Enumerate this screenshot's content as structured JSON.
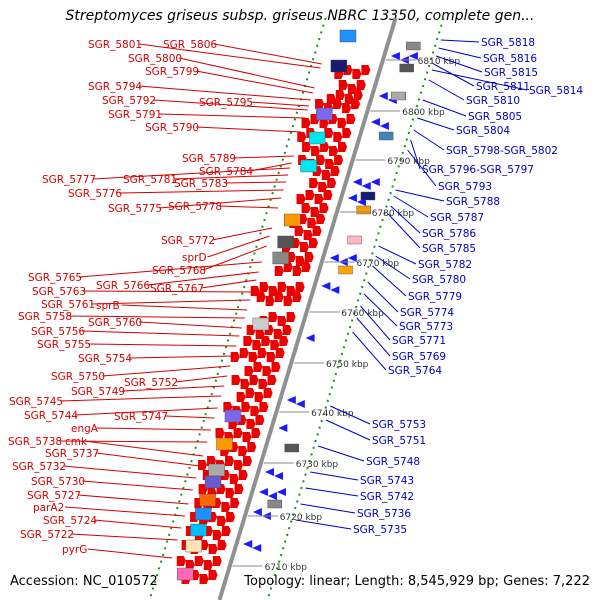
{
  "title": "Streptomyces griseus subsp. griseus NBRC 13350, complete gen...",
  "footer": {
    "accession": "Accession: NC_010572",
    "stats": "Topology: linear; Length: 8,545,929 bp; Genes: 7,222"
  },
  "colors": {
    "left_label": "#d40000",
    "right_label": "#0000c0",
    "backbone": "#909090",
    "tick": "#228b22"
  },
  "scale_labels": [
    "6810 kbp",
    "6800 kbp",
    "6790 kbp",
    "6780 kbp",
    "6770 kbp",
    "6760 kbp",
    "6750 kbp",
    "6740 kbp",
    "6730 kbp",
    "6720 kbp",
    "6710 kbp"
  ],
  "left_labels": [
    "SGR_5801",
    "SGR_5806",
    "SGR_5800",
    "SGR_5799",
    "SGR_5794",
    "SGR_5795",
    "SGR_5792",
    "SGR_5791",
    "SGR_5790",
    "SGR_5789",
    "SGR_5784",
    "SGR_5777",
    "SGR_5781",
    "SGR_5783",
    "SGR_5776",
    "SGR_5775",
    "SGR_5778",
    "SGR_5772",
    "sprD",
    "SGR_5768",
    "SGR_5765",
    "SGR_5766",
    "SGR_5767",
    "SGR_5763",
    "SGR_5761",
    "sprB",
    "SGR_5758",
    "SGR_5760",
    "SGR_5756",
    "SGR_5755",
    "SGR_5754",
    "SGR_5750",
    "SGR_5752",
    "SGR_5749",
    "SGR_5745",
    "SGR_5744",
    "SGR_5747",
    "engA",
    "SGR_5738",
    "cmk",
    "SGR_5737",
    "SGR_5732",
    "SGR_5730",
    "SGR_5727",
    "parA2",
    "SGR_5724",
    "SGR_5722",
    "pyrG"
  ],
  "right_labels": [
    "SGR_5818",
    "SGR_5816",
    "SGR_5815",
    "SGR_5811",
    "SGR_5814",
    "SGR_5810",
    "SGR_5805",
    "SGR_5804",
    "SGR_5798-SGR_5802",
    "SGR_5796-SGR_5797",
    "SGR_5793",
    "SGR_5788",
    "SGR_5787",
    "SGR_5786",
    "SGR_5785",
    "SGR_5782",
    "SGR_5780",
    "SGR_5779",
    "SGR_5774",
    "SGR_5773",
    "SGR_5771",
    "SGR_5769",
    "SGR_5764",
    "SGR_5753",
    "SGR_5751",
    "SGR_5748",
    "SGR_5743",
    "SGR_5742",
    "SGR_5736",
    "SGR_5735"
  ]
}
